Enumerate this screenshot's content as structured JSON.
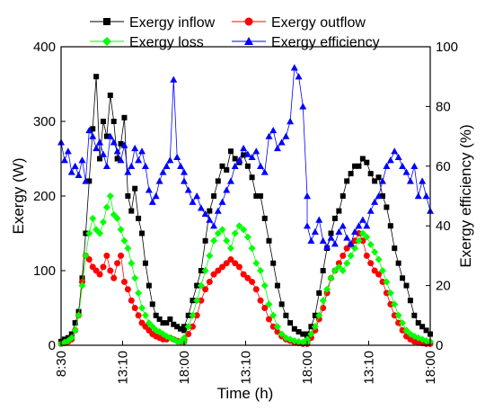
{
  "colors": {
    "inflow": "#000000",
    "outflow": "#ff0000",
    "loss": "#00ff00",
    "efficiency": "#0000ff",
    "axis": "#000000"
  },
  "chart_data": {
    "type": "scatter",
    "title": "",
    "xlabel": "Time (h)",
    "ylabel": "Exergy (W)",
    "y2label": "Exergy efficiency (%)",
    "x_tick_labels": [
      "8:30",
      "13:10",
      "18:00",
      "13:10",
      "18:00",
      "13:10",
      "18:00"
    ],
    "ylim": [
      0,
      400
    ],
    "y_ticks": [
      0,
      100,
      200,
      300,
      400
    ],
    "y2lim": [
      0,
      100
    ],
    "y2_ticks": [
      0,
      20,
      40,
      60,
      80,
      100
    ],
    "legend_position": "top",
    "days": [
      {
        "start": "8:30",
        "end": "18:00"
      },
      {
        "start": "8:30",
        "end": "18:00"
      },
      {
        "start": "8:30",
        "end": "18:00"
      }
    ],
    "series": [
      {
        "name": "Exergy inflow",
        "axis": "left",
        "marker": "square",
        "color_key": "inflow",
        "y": [
          [
            5,
            8,
            10,
            15,
            30,
            45,
            90,
            150,
            220,
            290,
            360,
            250,
            300,
            280,
            335,
            300,
            250,
            270,
            305,
            200,
            180,
            210,
            170,
            150,
            110,
            80,
            55,
            40,
            35,
            30,
            30,
            35,
            28,
            25,
            22,
            20
          ],
          [
            25,
            40,
            60,
            80,
            100,
            140,
            180,
            200,
            220,
            240,
            235,
            260,
            250,
            245,
            255,
            240,
            225,
            200,
            200,
            170,
            140,
            110,
            80,
            55,
            40,
            30,
            22,
            18,
            15,
            12
          ],
          [
            15,
            25,
            40,
            70,
            100,
            130,
            150,
            170,
            180,
            200,
            220,
            230,
            240,
            240,
            250,
            245,
            230,
            220,
            225,
            200,
            185,
            160,
            130,
            110,
            90,
            80,
            60,
            40,
            30,
            25,
            20,
            15
          ]
        ]
      },
      {
        "name": "Exergy outflow",
        "axis": "left",
        "marker": "circle",
        "color_key": "outflow",
        "y": [
          [
            2,
            3,
            5,
            8,
            20,
            40,
            85,
            120,
            115,
            105,
            100,
            95,
            105,
            120,
            100,
            90,
            110,
            120,
            85,
            75,
            60,
            50,
            40,
            30,
            25,
            20,
            15,
            12,
            10,
            8,
            8,
            10,
            8,
            6,
            5,
            5
          ],
          [
            8,
            15,
            25,
            40,
            60,
            75,
            85,
            95,
            100,
            105,
            110,
            115,
            110,
            105,
            95,
            90,
            85,
            75,
            60,
            50,
            35,
            25,
            18,
            12,
            8,
            6,
            4,
            3,
            2,
            2
          ],
          [
            5,
            10,
            20,
            35,
            50,
            70,
            90,
            100,
            110,
            120,
            130,
            135,
            140,
            150,
            140,
            120,
            110,
            100,
            95,
            85,
            70,
            55,
            40,
            30,
            20,
            12,
            8,
            5,
            4,
            3,
            2,
            2
          ]
        ]
      },
      {
        "name": "Exergy loss",
        "axis": "left",
        "marker": "diamond",
        "color_key": "loss",
        "y": [
          [
            2,
            4,
            6,
            10,
            20,
            40,
            80,
            120,
            150,
            170,
            155,
            150,
            165,
            185,
            200,
            175,
            170,
            155,
            140,
            130,
            110,
            90,
            70,
            50,
            40,
            30,
            25,
            20,
            18,
            15,
            12,
            10,
            8,
            5,
            5,
            5
          ],
          [
            10,
            25,
            40,
            60,
            80,
            100,
            120,
            140,
            150,
            155,
            140,
            130,
            150,
            160,
            155,
            145,
            130,
            110,
            100,
            80,
            55,
            40,
            25,
            15,
            10,
            8,
            6,
            5,
            4,
            4
          ],
          [
            8,
            15,
            25,
            40,
            60,
            75,
            90,
            100,
            105,
            100,
            110,
            120,
            130,
            140,
            150,
            145,
            135,
            125,
            115,
            100,
            85,
            70,
            55,
            40,
            30,
            20,
            15,
            12,
            10,
            8,
            6,
            5
          ]
        ]
      },
      {
        "name": "Exergy efficiency",
        "axis": "right",
        "marker": "triangle-up",
        "color_key": "efficiency",
        "y": [
          [
            68,
            62,
            65,
            58,
            60,
            57,
            62,
            55,
            72,
            70,
            66,
            68,
            64,
            60,
            70,
            68,
            65,
            62,
            67,
            58,
            60,
            66,
            62,
            65,
            60,
            52,
            48,
            50,
            55,
            58,
            60,
            62,
            89,
            63,
            60,
            58
          ],
          [
            55,
            52,
            48,
            50,
            46,
            44,
            42,
            40,
            45,
            48,
            52,
            55,
            60,
            62,
            66,
            64,
            63,
            65,
            60,
            58,
            70,
            72,
            66,
            68,
            70,
            75,
            93,
            90,
            80,
            50
          ],
          [
            40,
            35,
            38,
            42,
            35,
            33,
            36,
            34,
            38,
            40,
            36,
            34,
            38,
            40,
            42,
            40,
            45,
            48,
            50,
            55,
            60,
            62,
            65,
            63,
            60,
            58,
            55,
            60,
            50,
            55,
            50,
            45
          ]
        ]
      }
    ]
  }
}
